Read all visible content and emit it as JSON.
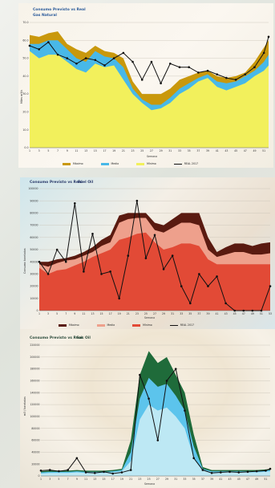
{
  "chart_data": [
    {
      "type": "area",
      "title": "Consumo Previsto vs Real",
      "subtitle": "Gas Natural",
      "ylabel": "Miles m3/s",
      "xlabel": "Semana",
      "ylim": [
        0,
        70
      ],
      "yticks": [
        "0.0",
        "10.0",
        "20.0",
        "30.0",
        "40.0",
        "50.0",
        "60.0",
        "70.0"
      ],
      "x_ticks": [
        "1",
        "3",
        "5",
        "7",
        "9",
        "11",
        "13",
        "15",
        "17",
        "19",
        "21",
        "23",
        "25",
        "27",
        "29",
        "31",
        "33",
        "35",
        "37",
        "39",
        "41",
        "43",
        "45",
        "47",
        "49",
        "51"
      ],
      "x": [
        1,
        3,
        5,
        7,
        9,
        11,
        13,
        15,
        17,
        19,
        21,
        23,
        25,
        27,
        29,
        31,
        33,
        35,
        37,
        39,
        41,
        43,
        45,
        47,
        49,
        51,
        52
      ],
      "series": [
        {
          "name": "Máximo",
          "kind": "area",
          "color": "#c9980c",
          "values": [
            63,
            62,
            64,
            65,
            58,
            55,
            53,
            57,
            54,
            53,
            50,
            37,
            30,
            30,
            30,
            33,
            38,
            40,
            42,
            43,
            40,
            39,
            40,
            42,
            48,
            56,
            60
          ]
        },
        {
          "name": "Media",
          "kind": "area",
          "color": "#48b8e8",
          "values": [
            58,
            58,
            60,
            60,
            55,
            50,
            48,
            54,
            51,
            50,
            45,
            33,
            27,
            24,
            24,
            28,
            33,
            36,
            39,
            41,
            37,
            36,
            37,
            40,
            43,
            48,
            52
          ]
        },
        {
          "name": "Mínimo",
          "kind": "area",
          "color": "#f2f05c",
          "values": [
            54,
            50,
            52,
            52,
            48,
            44,
            42,
            47,
            45,
            46,
            38,
            30,
            25,
            21,
            22,
            25,
            30,
            33,
            37,
            39,
            34,
            32,
            34,
            36,
            40,
            43,
            46
          ]
        },
        {
          "name": "REAL 2017",
          "kind": "line",
          "color": "#111111",
          "values": [
            57,
            55,
            59,
            52,
            50,
            47,
            50,
            49,
            46,
            50,
            53,
            48,
            38,
            48,
            36,
            47,
            45,
            45,
            42,
            43,
            41,
            39,
            38,
            41,
            45,
            53,
            62
          ]
        }
      ],
      "legend": "bottom"
    },
    {
      "type": "area",
      "title": "Consumo Previsto vs Real",
      "subtitle": "Fuel Oil",
      "ylabel": "Consumo toneladas",
      "xlabel": "Semana",
      "ylim": [
        0,
        100000
      ],
      "yticks": [
        "0",
        "10000",
        "20000",
        "30000",
        "40000",
        "50000",
        "60000",
        "70000",
        "80000",
        "90000",
        "100000"
      ],
      "x_ticks": [
        "1",
        "3",
        "5",
        "7",
        "9",
        "11",
        "13",
        "15",
        "17",
        "19",
        "21",
        "23",
        "25",
        "27",
        "29",
        "31",
        "33",
        "35",
        "37",
        "39",
        "41",
        "43",
        "45",
        "47",
        "49",
        "51",
        "53"
      ],
      "x": [
        1,
        3,
        5,
        7,
        9,
        11,
        13,
        15,
        17,
        19,
        21,
        23,
        25,
        27,
        29,
        31,
        33,
        35,
        37,
        39,
        41,
        43,
        45,
        47,
        49,
        51,
        53
      ],
      "series": [
        {
          "name": "Máximo",
          "kind": "area",
          "color": "#5a1a10",
          "values": [
            40000,
            40000,
            42000,
            43000,
            45000,
            48000,
            52000,
            58000,
            62000,
            78000,
            80000,
            80000,
            80000,
            72000,
            70000,
            75000,
            80000,
            80000,
            80000,
            60000,
            48000,
            52000,
            55000,
            55000,
            53000,
            55000,
            56000
          ]
        },
        {
          "name": "Media",
          "kind": "area",
          "color": "#eea08c",
          "values": [
            38000,
            36000,
            39000,
            41000,
            42000,
            45000,
            48000,
            53000,
            56000,
            72000,
            75000,
            76000,
            76000,
            66000,
            64000,
            68000,
            72000,
            72000,
            70000,
            50000,
            44000,
            46000,
            48000,
            48000,
            46000,
            46000,
            47000
          ]
        },
        {
          "name": "Mínimo",
          "kind": "area",
          "color": "#e24a36",
          "values": [
            35000,
            30000,
            33000,
            34000,
            37000,
            40000,
            44000,
            47000,
            50000,
            58000,
            60000,
            63000,
            64000,
            56000,
            50000,
            52000,
            55000,
            55000,
            53000,
            42000,
            38000,
            38000,
            38000,
            38000,
            38000,
            38000,
            38000
          ]
        },
        {
          "name": "REAL 2017",
          "kind": "line",
          "color": "#111111",
          "values": [
            40000,
            30000,
            50000,
            40000,
            88000,
            32000,
            63000,
            30000,
            32000,
            10000,
            45000,
            90000,
            43000,
            62000,
            34000,
            45000,
            20000,
            6000,
            30000,
            20000,
            28000,
            6000,
            0,
            0,
            0,
            0,
            20000
          ]
        }
      ],
      "legend": "bottom"
    },
    {
      "type": "area",
      "title": "Consumo Previsto vs Real",
      "subtitle": "Gas Oil",
      "ylabel": "m3 / toneladas",
      "xlabel": "Semana",
      "ylim": [
        0,
        220000
      ],
      "yticks": [
        "0",
        "20000",
        "40000",
        "60000",
        "80000",
        "100000",
        "120000",
        "140000",
        "160000",
        "180000",
        "200000",
        "220000"
      ],
      "x_ticks": [
        "1",
        "3",
        "5",
        "7",
        "9",
        "11",
        "13",
        "15",
        "17",
        "19",
        "21",
        "23",
        "25",
        "27",
        "29",
        "31",
        "33",
        "35",
        "37",
        "39",
        "41",
        "43",
        "45",
        "47",
        "49",
        "51"
      ],
      "x": [
        1,
        3,
        5,
        7,
        9,
        11,
        13,
        15,
        17,
        19,
        21,
        23,
        25,
        27,
        29,
        31,
        33,
        35,
        37,
        39,
        41,
        43,
        45,
        47,
        49,
        51,
        52
      ],
      "series": [
        {
          "name": "Máximo",
          "kind": "area",
          "color": "#1f6b3a",
          "values": [
            8000,
            9000,
            9000,
            9000,
            10000,
            9000,
            9000,
            9000,
            10000,
            12000,
            60000,
            170000,
            210000,
            190000,
            200000,
            170000,
            140000,
            70000,
            15000,
            10000,
            10000,
            10000,
            10000,
            10000,
            10000,
            11000,
            12000
          ]
        },
        {
          "name": "Media",
          "kind": "area",
          "color": "#5cc4ec",
          "values": [
            6000,
            7000,
            7000,
            7000,
            8000,
            7000,
            7000,
            7000,
            8000,
            10000,
            40000,
            130000,
            165000,
            150000,
            155000,
            135000,
            110000,
            50000,
            12000,
            8000,
            8000,
            8000,
            8000,
            8000,
            8000,
            9000,
            10000
          ]
        },
        {
          "name": "Mínimo",
          "kind": "area",
          "color": "#bde8f4",
          "values": [
            4000,
            5000,
            5000,
            5000,
            6000,
            5000,
            5000,
            5000,
            6000,
            8000,
            25000,
            95000,
            120000,
            110000,
            115000,
            100000,
            80000,
            30000,
            9000,
            6000,
            6000,
            6000,
            6000,
            6000,
            6000,
            7000,
            8000
          ]
        },
        {
          "name": "REAL 2017",
          "kind": "line",
          "color": "#111111",
          "values": [
            9000,
            10000,
            8000,
            10000,
            30000,
            6000,
            5000,
            7000,
            4000,
            6000,
            10000,
            170000,
            130000,
            60000,
            160000,
            180000,
            110000,
            30000,
            10000,
            5000,
            6000,
            7000,
            6000,
            7000,
            8000,
            9000,
            12000
          ]
        }
      ],
      "legend": "bottom"
    }
  ]
}
